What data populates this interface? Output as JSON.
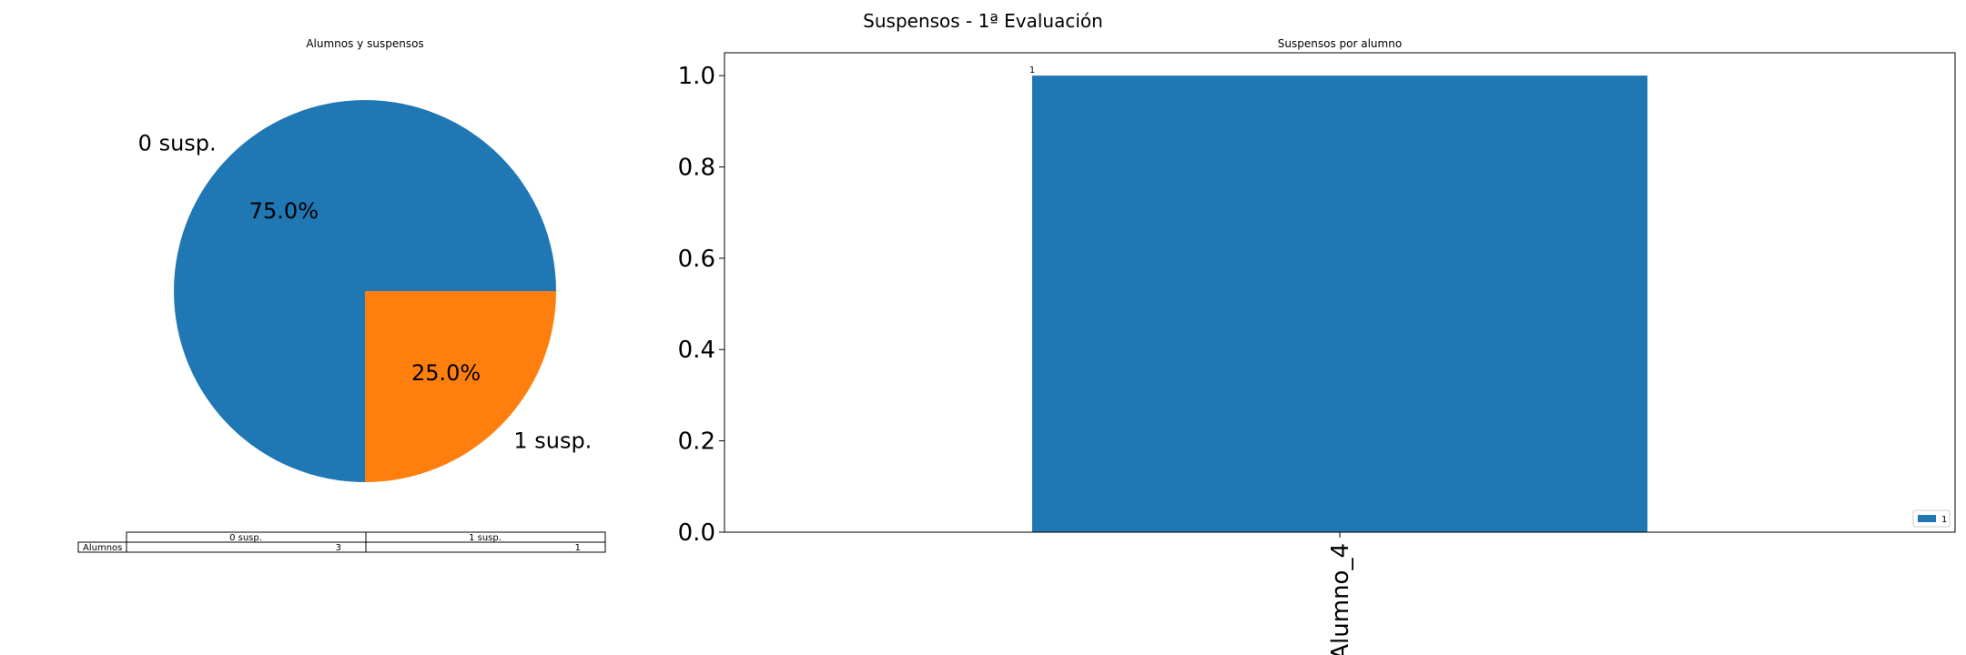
{
  "figure_title": "Suspensos -  1ª Evaluación",
  "colors": {
    "blue": "#1f77b4",
    "orange": "#ff7f0e"
  },
  "chart_data": [
    {
      "type": "pie",
      "title": "Alumnos y suspensos",
      "labels": [
        "0 susp.",
        "1 susp."
      ],
      "values": [
        3,
        1
      ],
      "percent_labels": [
        "75.0%",
        "25.0%"
      ],
      "colors": [
        "#1f77b4",
        "#ff7f0e"
      ],
      "table": {
        "col_headers": [
          "0 susp.",
          "1 susp."
        ],
        "row_header": "Alumnos",
        "cells": [
          "3",
          "1"
        ]
      }
    },
    {
      "type": "bar",
      "title": "Suspensos por alumno",
      "categories": [
        "Alumno_4"
      ],
      "series": [
        {
          "name": "1",
          "values": [
            1
          ],
          "color": "#1f77b4"
        }
      ],
      "data_labels": [
        "1"
      ],
      "ylim": [
        0,
        1.05
      ],
      "yticks": [
        0.0,
        0.2,
        0.4,
        0.6,
        0.8,
        1.0
      ],
      "ytick_labels": [
        "0.0",
        "0.2",
        "0.4",
        "0.6",
        "0.8",
        "1.0"
      ],
      "legend_position": "lower-right",
      "grid": false
    }
  ]
}
